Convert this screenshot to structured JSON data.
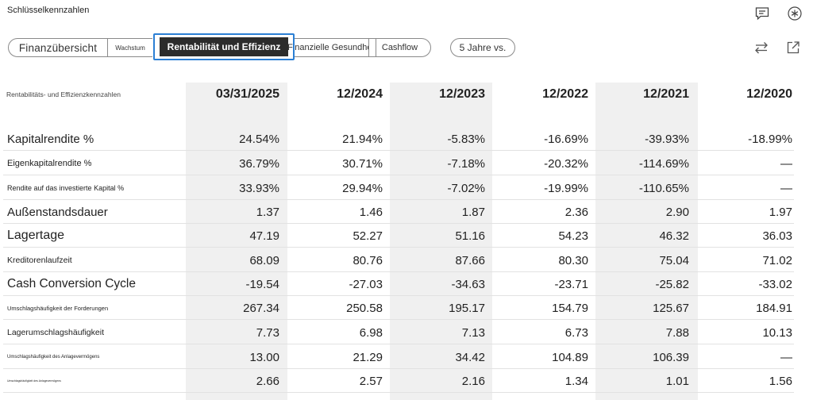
{
  "page": {
    "title": "Schlüsselkennzahlen"
  },
  "icons": {
    "comment": "comment-icon",
    "settings": "asterisk-icon",
    "swap": "swap-arrows-icon",
    "open_external": "external-link-icon"
  },
  "tabs": {
    "finanzuebersicht": "Finanzübersicht",
    "wachstum": "Wachstum",
    "rentabilitaet": "Rentabilität und Effizienz",
    "gesundheit": "Finanzielle Gesundheit",
    "cashflow": "Cashflow"
  },
  "compare_button": "5 Jahre vs.",
  "table": {
    "header_label": "Rentabilitäts- und Effizienzkennzahlen",
    "columns": [
      "03/31/2025",
      "12/2024",
      "12/2023",
      "12/2022",
      "12/2021",
      "12/2020"
    ],
    "rows": [
      {
        "label": "Kapitalrendite %",
        "values": [
          "24.54%",
          "21.94%",
          "-5.83%",
          "-16.69%",
          "-39.93%",
          "-18.99%"
        ]
      },
      {
        "label": "Eigenkapitalrendite %",
        "values": [
          "36.79%",
          "30.71%",
          "-7.18%",
          "-20.32%",
          "-114.69%",
          "—"
        ]
      },
      {
        "label": "Rendite auf das investierte Kapital %",
        "values": [
          "33.93%",
          "29.94%",
          "-7.02%",
          "-19.99%",
          "-110.65%",
          "—"
        ]
      },
      {
        "label": "Außenstandsdauer",
        "values": [
          "1.37",
          "1.46",
          "1.87",
          "2.36",
          "2.90",
          "1.97"
        ]
      },
      {
        "label": "Lagertage",
        "values": [
          "47.19",
          "52.27",
          "51.16",
          "54.23",
          "46.32",
          "36.03"
        ]
      },
      {
        "label": "Kreditorenlaufzeit",
        "values": [
          "68.09",
          "80.76",
          "87.66",
          "80.30",
          "75.04",
          "71.02"
        ]
      },
      {
        "label": "Cash Conversion Cycle",
        "values": [
          "-19.54",
          "-27.03",
          "-34.63",
          "-23.71",
          "-25.82",
          "-33.02"
        ]
      },
      {
        "label": "Umschlagshäufigkeit der Forderungen",
        "values": [
          "267.34",
          "250.58",
          "195.17",
          "154.79",
          "125.67",
          "184.91"
        ]
      },
      {
        "label": "Lagerumschlagshäufigkeit",
        "values": [
          "7.73",
          "6.98",
          "7.13",
          "6.73",
          "7.88",
          "10.13"
        ]
      },
      {
        "label": "Umschlagshäufigkeit des Anlagevermögens",
        "values": [
          "13.00",
          "21.29",
          "34.42",
          "104.89",
          "106.39",
          "—"
        ]
      },
      {
        "label": "Umschlagshäufigkeit des Anlagevermögens",
        "values": [
          "2.66",
          "2.57",
          "2.16",
          "1.34",
          "1.01",
          "1.56"
        ]
      }
    ]
  }
}
